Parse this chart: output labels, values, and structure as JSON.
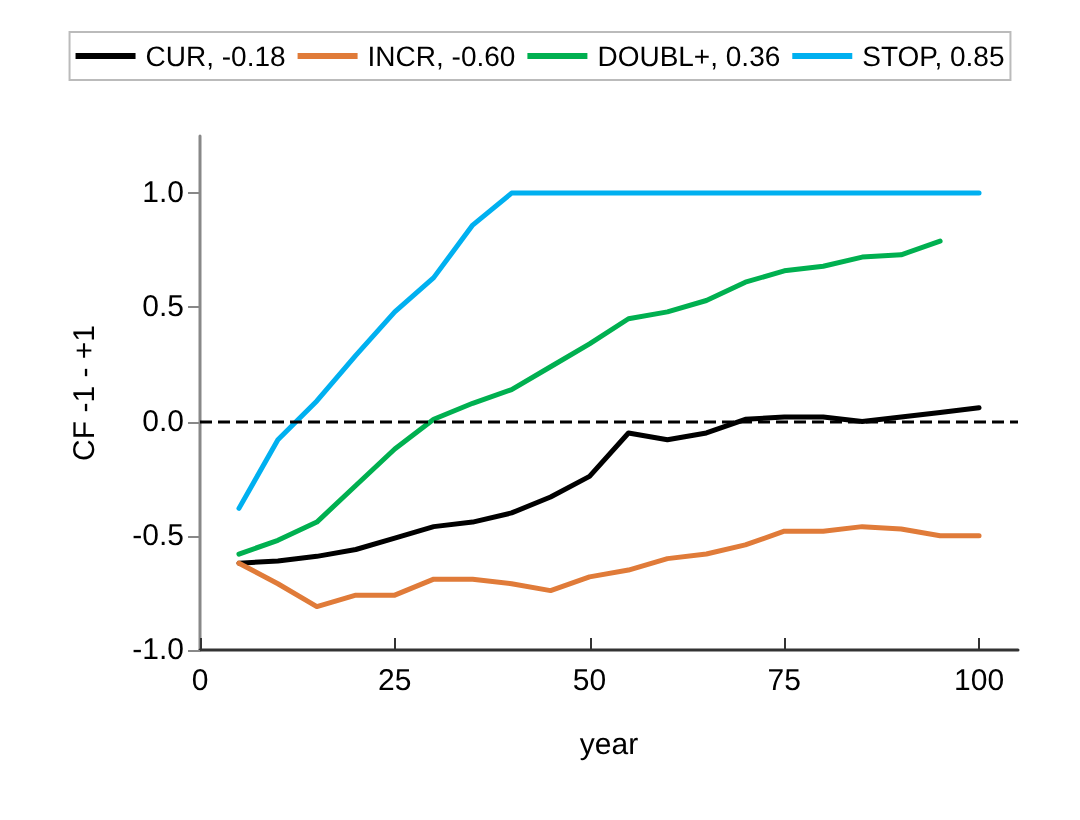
{
  "chart_data": {
    "type": "line",
    "xlabel": "year",
    "ylabel": "CF -1 - +1",
    "x": [
      5,
      10,
      15,
      20,
      25,
      30,
      35,
      40,
      45,
      50,
      55,
      60,
      65,
      70,
      75,
      80,
      85,
      90,
      95,
      100
    ],
    "series": [
      {
        "name": "CUR, -0.18",
        "color": "#000000",
        "values": [
          -0.62,
          -0.61,
          -0.59,
          -0.56,
          -0.51,
          -0.46,
          -0.44,
          -0.4,
          -0.33,
          -0.24,
          -0.05,
          -0.08,
          -0.05,
          0.01,
          0.02,
          0.02,
          0.0,
          0.02,
          0.04,
          0.06
        ]
      },
      {
        "name": "INCR, -0.60",
        "color": "#e07b39",
        "values": [
          -0.62,
          -0.71,
          -0.81,
          -0.76,
          -0.76,
          -0.69,
          -0.69,
          -0.71,
          -0.74,
          -0.68,
          -0.65,
          -0.6,
          -0.58,
          -0.54,
          -0.48,
          -0.48,
          -0.46,
          -0.47,
          -0.5,
          -0.5
        ]
      },
      {
        "name": "DOUBL+, 0.36",
        "color": "#00b050",
        "values": [
          -0.58,
          -0.52,
          -0.44,
          -0.28,
          -0.12,
          0.01,
          0.08,
          0.14,
          0.24,
          0.34,
          0.45,
          0.48,
          0.53,
          0.61,
          0.66,
          0.68,
          0.72,
          0.73,
          0.79,
          null
        ]
      },
      {
        "name": "STOP, 0.85",
        "color": "#00b0f0",
        "values": [
          -0.38,
          -0.08,
          0.09,
          0.29,
          0.48,
          0.63,
          0.86,
          1.0,
          1.0,
          1.0,
          1.0,
          1.0,
          1.0,
          1.0,
          1.0,
          1.0,
          1.0,
          1.0,
          1.0,
          1.0
        ]
      }
    ],
    "xlim": [
      0,
      105
    ],
    "xticks": [
      0,
      25,
      50,
      75,
      100
    ],
    "ylim": [
      -1,
      1.25
    ],
    "yticks": [
      {
        "value": -1,
        "label": "-1.0"
      },
      {
        "value": -0.5,
        "label": "-0.5"
      },
      {
        "value": 0,
        "label": "0.0"
      },
      {
        "value": 0.5,
        "label": "0.5"
      },
      {
        "value": 1,
        "label": "1.0"
      }
    ],
    "ref_lines": [
      {
        "axis": "y",
        "value": 0,
        "color": "#000000",
        "line_style": "dashed"
      }
    ],
    "grid": false,
    "legend": "top",
    "marker": "none",
    "line_style": "solid"
  }
}
